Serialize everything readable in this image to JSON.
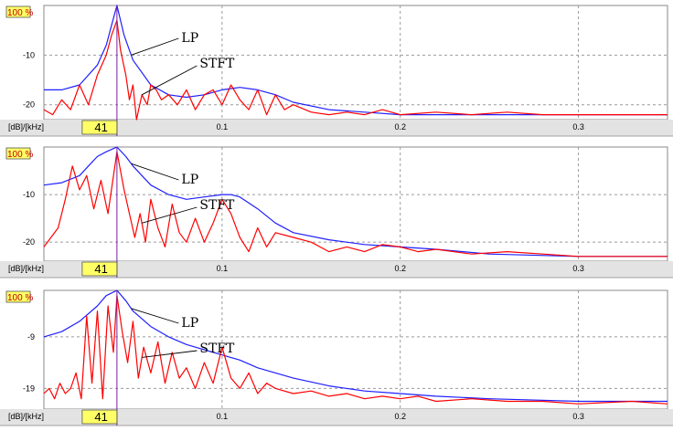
{
  "colors": {
    "lp": "#1f1fff",
    "stft": "#ff0000",
    "cursor": "#7a1fa0",
    "grid": "#9a9a9a",
    "axis_bg": "#e3e3e3",
    "label_bg": "#ffff66"
  },
  "chart_data": [
    {
      "type": "line",
      "scale_label": "100 %",
      "units_label": "[dB]/[kHz]",
      "cursor_label": "41",
      "cursor_x": 0.041,
      "xlim": [
        0,
        0.35
      ],
      "ylim": [
        -23,
        0
      ],
      "x_ticks": [
        0.1,
        0.2,
        0.3
      ],
      "x_tick_labels": [
        "0.1",
        "0.2",
        "0.3"
      ],
      "y_ticks": [
        -10,
        -20
      ],
      "y_tick_labels": [
        "-10",
        "-20"
      ],
      "annotations": [
        "LP",
        "STFT"
      ],
      "series": [
        {
          "name": "LP",
          "x": [
            0,
            0.01,
            0.02,
            0.03,
            0.035,
            0.038,
            0.041,
            0.045,
            0.05,
            0.06,
            0.07,
            0.08,
            0.09,
            0.1,
            0.11,
            0.12,
            0.13,
            0.14,
            0.16,
            0.18,
            0.2,
            0.22,
            0.25,
            0.3,
            0.35
          ],
          "y": [
            -17,
            -17,
            -16,
            -12,
            -8,
            -4,
            0,
            -6,
            -11,
            -16,
            -18,
            -18.5,
            -18,
            -17,
            -16.5,
            -17,
            -18,
            -19.5,
            -21,
            -21.5,
            -22,
            -22,
            -22,
            -22,
            -22
          ]
        },
        {
          "name": "STFT",
          "x": [
            0,
            0.005,
            0.01,
            0.015,
            0.02,
            0.025,
            0.03,
            0.035,
            0.038,
            0.041,
            0.043,
            0.046,
            0.048,
            0.05,
            0.052,
            0.055,
            0.058,
            0.06,
            0.063,
            0.066,
            0.07,
            0.075,
            0.08,
            0.085,
            0.09,
            0.095,
            0.1,
            0.105,
            0.11,
            0.115,
            0.12,
            0.125,
            0.13,
            0.135,
            0.14,
            0.15,
            0.16,
            0.17,
            0.18,
            0.19,
            0.2,
            0.22,
            0.24,
            0.26,
            0.28,
            0.3,
            0.32,
            0.35
          ],
          "y": [
            -21,
            -22,
            -19,
            -21,
            -16,
            -20,
            -14,
            -10,
            -6,
            -3,
            -9,
            -14,
            -19,
            -16,
            -23,
            -18,
            -20,
            -16,
            -17,
            -19,
            -18,
            -20,
            -17,
            -21,
            -18,
            -17,
            -20,
            -16,
            -19,
            -21,
            -17,
            -22,
            -18,
            -21,
            -20,
            -21.5,
            -22,
            -21.5,
            -22,
            -21,
            -22,
            -21.5,
            -22,
            -21.5,
            -22,
            -22,
            -22,
            -22
          ]
        }
      ]
    },
    {
      "type": "line",
      "scale_label": "100 %",
      "units_label": "[dB]/[kHz]",
      "cursor_label": "41",
      "cursor_x": 0.041,
      "xlim": [
        0,
        0.35
      ],
      "ylim": [
        -24,
        0
      ],
      "x_ticks": [
        0.1,
        0.2,
        0.3
      ],
      "x_tick_labels": [
        "0.1",
        "0.2",
        "0.3"
      ],
      "y_ticks": [
        -10,
        -20
      ],
      "y_tick_labels": [
        "-10",
        "-20"
      ],
      "annotations": [
        "LP",
        "STFT"
      ],
      "series": [
        {
          "name": "LP",
          "x": [
            0,
            0.01,
            0.02,
            0.025,
            0.03,
            0.035,
            0.041,
            0.046,
            0.05,
            0.055,
            0.06,
            0.07,
            0.08,
            0.09,
            0.1,
            0.105,
            0.11,
            0.12,
            0.13,
            0.14,
            0.16,
            0.18,
            0.2,
            0.22,
            0.25,
            0.3,
            0.35
          ],
          "y": [
            -8,
            -7.5,
            -6,
            -4,
            -2,
            -1,
            0,
            -2,
            -4,
            -6,
            -8,
            -10,
            -11,
            -10.5,
            -10,
            -10,
            -10.5,
            -13,
            -16,
            -18,
            -19.5,
            -20.5,
            -21,
            -21.5,
            -22.5,
            -23,
            -23
          ]
        },
        {
          "name": "STFT",
          "x": [
            0,
            0.004,
            0.008,
            0.012,
            0.016,
            0.02,
            0.024,
            0.028,
            0.032,
            0.036,
            0.041,
            0.045,
            0.048,
            0.051,
            0.054,
            0.057,
            0.06,
            0.064,
            0.068,
            0.072,
            0.076,
            0.08,
            0.085,
            0.09,
            0.095,
            0.1,
            0.105,
            0.11,
            0.115,
            0.12,
            0.125,
            0.13,
            0.14,
            0.15,
            0.16,
            0.17,
            0.18,
            0.19,
            0.2,
            0.21,
            0.22,
            0.24,
            0.26,
            0.28,
            0.3,
            0.33,
            0.35
          ],
          "y": [
            -21,
            -19,
            -17,
            -11,
            -4,
            -9,
            -6,
            -13,
            -7,
            -14,
            -1,
            -9,
            -14,
            -19,
            -14,
            -20,
            -11,
            -17,
            -21,
            -12,
            -18,
            -20,
            -15,
            -20,
            -16,
            -11,
            -14,
            -19,
            -22,
            -17,
            -21,
            -18,
            -19,
            -20,
            -22,
            -21,
            -22,
            -20.5,
            -21,
            -22,
            -21.5,
            -22.5,
            -22,
            -22.5,
            -23,
            -23,
            -23
          ]
        }
      ]
    },
    {
      "type": "line",
      "scale_label": "100 %",
      "units_label": "[dB]/[kHz]",
      "cursor_label": "41",
      "cursor_x": 0.041,
      "xlim": [
        0,
        0.35
      ],
      "ylim": [
        -23,
        0
      ],
      "x_ticks": [
        0.1,
        0.2,
        0.3
      ],
      "x_tick_labels": [
        "0.1",
        "0.2",
        "0.3"
      ],
      "y_ticks": [
        -9,
        -19
      ],
      "y_tick_labels": [
        "-9",
        "-19"
      ],
      "annotations": [
        "LP",
        "STFT"
      ],
      "series": [
        {
          "name": "LP",
          "x": [
            0,
            0.01,
            0.02,
            0.03,
            0.035,
            0.041,
            0.046,
            0.05,
            0.06,
            0.07,
            0.08,
            0.09,
            0.1,
            0.11,
            0.12,
            0.14,
            0.16,
            0.18,
            0.2,
            0.22,
            0.25,
            0.3,
            0.35
          ],
          "y": [
            -9,
            -8,
            -6,
            -3,
            -1,
            0,
            -2,
            -4,
            -7,
            -9,
            -10.5,
            -11.5,
            -12.5,
            -13.5,
            -15,
            -17,
            -18.5,
            -19.5,
            -20,
            -20.5,
            -21,
            -21.5,
            -21.5
          ]
        },
        {
          "name": "STFT",
          "x": [
            0,
            0.003,
            0.006,
            0.009,
            0.012,
            0.015,
            0.018,
            0.021,
            0.024,
            0.027,
            0.03,
            0.033,
            0.036,
            0.039,
            0.041,
            0.044,
            0.047,
            0.05,
            0.053,
            0.056,
            0.06,
            0.064,
            0.068,
            0.072,
            0.076,
            0.08,
            0.085,
            0.09,
            0.095,
            0.1,
            0.105,
            0.11,
            0.115,
            0.12,
            0.125,
            0.13,
            0.14,
            0.15,
            0.16,
            0.17,
            0.18,
            0.19,
            0.2,
            0.21,
            0.22,
            0.24,
            0.26,
            0.28,
            0.3,
            0.33,
            0.35
          ],
          "y": [
            -20,
            -19,
            -21,
            -18,
            -20,
            -19,
            -16,
            -21,
            -5,
            -18,
            -4,
            -21,
            -3,
            -12,
            -1,
            -8,
            -14,
            -6,
            -17,
            -11,
            -16,
            -10,
            -18,
            -12,
            -17,
            -15,
            -19,
            -14,
            -18,
            -11,
            -17,
            -19,
            -16,
            -20,
            -18,
            -19,
            -20,
            -19.5,
            -20.5,
            -20,
            -21,
            -20.5,
            -21,
            -20.5,
            -21.5,
            -21,
            -21.5,
            -21.5,
            -22,
            -21.5,
            -22
          ]
        }
      ]
    }
  ]
}
